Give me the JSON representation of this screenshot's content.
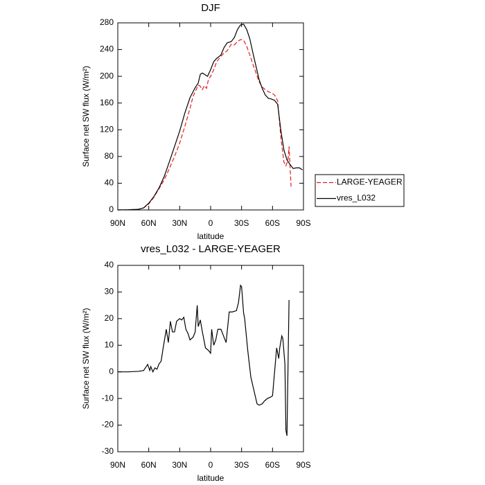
{
  "chart_data": [
    {
      "type": "line",
      "title": "DJF",
      "xlabel": "latitude",
      "ylabel": "Surface net SW flux (W/m²)",
      "xlim": [
        90,
        -90
      ],
      "xticks": [
        {
          "value": 90,
          "label": "90N"
        },
        {
          "value": 60,
          "label": "60N"
        },
        {
          "value": 30,
          "label": "30N"
        },
        0,
        {
          "value": -30,
          "label": "30S"
        },
        {
          "value": -60,
          "label": "60S"
        },
        {
          "value": -90,
          "label": "90S"
        }
      ],
      "ylim": [
        0,
        280
      ],
      "yticks": [
        0,
        40,
        80,
        120,
        160,
        200,
        240,
        280
      ],
      "legend": "outside-right",
      "series": [
        {
          "name": "LARGE-YEAGER",
          "color": "#e41a1c",
          "linestyle": "dashed",
          "x": [
            90,
            80,
            70,
            65,
            60,
            55,
            50,
            45,
            40,
            35,
            30,
            25,
            20,
            17,
            14,
            12,
            10,
            8,
            6,
            4,
            2,
            0,
            -3,
            -6,
            -10,
            -13,
            -16,
            -20,
            -23,
            -26,
            -29,
            -32,
            -35,
            -38,
            -41,
            -44,
            -47,
            -50,
            -53,
            -56,
            -59,
            -62,
            -65,
            -68,
            -71,
            -73,
            -75,
            -76,
            -77,
            -78
          ],
          "values": [
            0,
            0.3,
            1,
            3,
            9,
            19,
            32,
            45,
            62,
            80,
            100,
            125,
            152,
            170,
            180,
            187,
            185,
            180,
            186,
            182,
            196,
            200,
            210,
            222,
            230,
            235,
            238,
            248,
            247,
            252,
            255,
            254,
            245,
            232,
            218,
            205,
            192,
            184,
            180,
            177,
            175,
            172,
            163,
            110,
            72,
            66,
            75,
            95,
            65,
            35
          ]
        },
        {
          "name": "vres_L032",
          "color": "#000000",
          "linestyle": "solid",
          "x": [
            90,
            80,
            70,
            65,
            60,
            55,
            50,
            45,
            40,
            35,
            30,
            25,
            20,
            15,
            12,
            10,
            8,
            5,
            3,
            0,
            -3,
            -6,
            -10,
            -13,
            -16,
            -20,
            -23,
            -26,
            -29,
            -32,
            -35,
            -38,
            -41,
            -44,
            -47,
            -50,
            -53,
            -56,
            -59,
            -62,
            -65,
            -68,
            -71,
            -74,
            -77,
            -80,
            -83,
            -86,
            -89
          ],
          "values": [
            0,
            0.3,
            1,
            3,
            10,
            20,
            33,
            50,
            72,
            95,
            118,
            145,
            168,
            183,
            190,
            203,
            205,
            202,
            200,
            210,
            222,
            227,
            232,
            243,
            250,
            252,
            258,
            270,
            277,
            278,
            270,
            256,
            235,
            215,
            195,
            182,
            172,
            167,
            166,
            164,
            158,
            120,
            90,
            75,
            68,
            62,
            63,
            63,
            60
          ]
        }
      ]
    },
    {
      "type": "line",
      "title": "vres_L032 - LARGE-YEAGER",
      "xlabel": "latitude",
      "ylabel": "Surface net SW flux (W/m²)",
      "xlim": [
        90,
        -90
      ],
      "xticks": [
        {
          "value": 90,
          "label": "90N"
        },
        {
          "value": 60,
          "label": "60N"
        },
        {
          "value": 30,
          "label": "30N"
        },
        0,
        {
          "value": -30,
          "label": "30S"
        },
        {
          "value": -60,
          "label": "60S"
        },
        {
          "value": -90,
          "label": "90S"
        }
      ],
      "ylim": [
        -30,
        40
      ],
      "yticks": [
        -30,
        -20,
        -10,
        0,
        10,
        20,
        30,
        40
      ],
      "color": "#000000",
      "x": [
        90,
        80,
        70,
        65,
        61,
        59,
        58,
        56,
        54,
        52,
        50,
        48,
        46,
        43,
        41,
        39,
        37,
        35,
        33,
        30,
        28,
        26,
        24,
        22,
        20,
        17,
        15,
        13,
        12,
        10,
        8,
        5,
        2,
        0,
        -1,
        -3,
        -5,
        -7,
        -10,
        -12,
        -15,
        -18,
        -21,
        -25,
        -27,
        -29,
        -30,
        -32,
        -33,
        -36,
        -39,
        -42,
        -45,
        -47,
        -50,
        -52,
        -55,
        -58,
        -60,
        -62,
        -64,
        -66,
        -67,
        -69,
        -70,
        -72,
        -73,
        -74,
        -76
      ],
      "values": [
        0,
        0,
        0.2,
        0.5,
        2.8,
        0.5,
        2,
        0,
        1.5,
        1,
        3,
        4,
        9,
        16,
        11,
        19,
        15,
        15,
        19,
        20,
        19.5,
        20.5,
        16,
        14.5,
        12,
        13,
        15,
        25,
        17,
        19.5,
        15,
        9,
        8,
        7,
        16,
        10,
        12,
        16,
        16,
        14,
        11,
        22.5,
        22.5,
        23,
        26,
        32.5,
        32,
        22,
        20,
        8,
        -2,
        -7,
        -12,
        -12.5,
        -12,
        -11,
        -10,
        -9.5,
        -9,
        0,
        9,
        5,
        9,
        13.5,
        12.5,
        3,
        -22,
        -24,
        27
      ]
    }
  ]
}
